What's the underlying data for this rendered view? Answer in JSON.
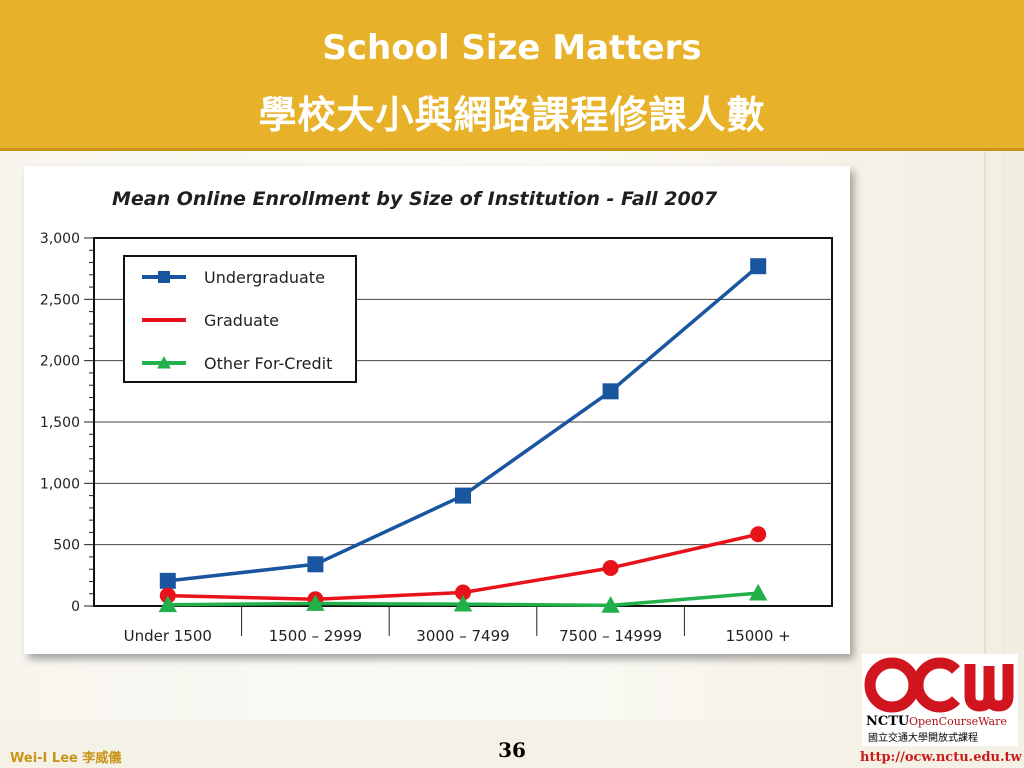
{
  "header": {
    "title_en": "School Size Matters",
    "title_zh": "學校大小與網路課程修課人數"
  },
  "chart_data": {
    "type": "line",
    "title": "Mean Online Enrollment by Size of Institution - Fall 2007",
    "xlabel": "",
    "ylabel": "",
    "categories": [
      "Under 1500",
      "1500 – 2999",
      "3000 – 7499",
      "7500 – 14999",
      "15000 +"
    ],
    "ylim": [
      0,
      3000
    ],
    "yticks": [
      0,
      500,
      1000,
      1500,
      2000,
      2500,
      3000
    ],
    "ytick_labels": [
      "0",
      "500",
      "1,000",
      "1,500",
      "2,000",
      "2,500",
      "3,000"
    ],
    "grid": true,
    "legend_position": "top-left",
    "series": [
      {
        "name": "Undergraduate",
        "values": [
          205,
          340,
          900,
          1750,
          2770
        ],
        "color": "#1a56a0",
        "marker": "square"
      },
      {
        "name": "Graduate",
        "values": [
          85,
          55,
          110,
          310,
          585
        ],
        "color": "#e8121b",
        "marker": "circle"
      },
      {
        "name": "Other For-Credit",
        "values": [
          10,
          20,
          15,
          5,
          105
        ],
        "color": "#22b04a",
        "marker": "triangle"
      }
    ]
  },
  "footer": {
    "author_en": "Wei-I Lee",
    "author_zh": "李威儀",
    "page_number": "36",
    "url": "http://ocw.nctu.edu.tw"
  },
  "logo": {
    "big_text": "OCW",
    "nctu": "NCTU",
    "opencourseware": "OpenCourseWare",
    "subtitle_zh": "國立交通大學開放式課程",
    "color": "#d0151f"
  }
}
